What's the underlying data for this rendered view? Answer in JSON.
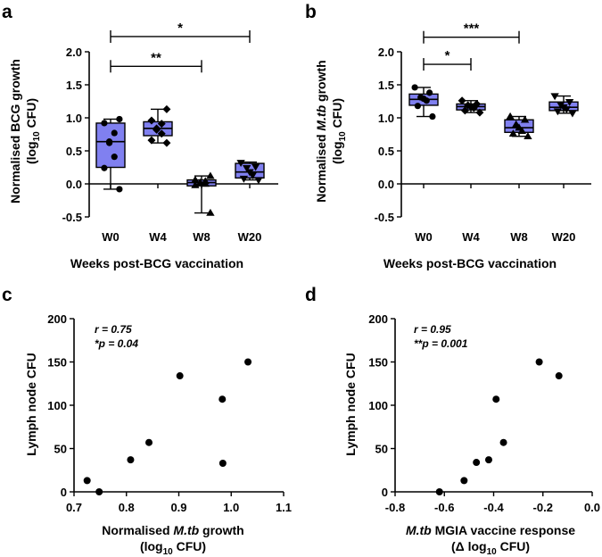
{
  "panels": [
    {
      "letter": "a",
      "ylabel_line1": "Normalised BCG growth",
      "ylabel_line2_pre": "(log",
      "ylabel_line2_sub": "10",
      "ylabel_line2_post": " CFU)",
      "xlabel": "Weeks post-BCG vaccination"
    },
    {
      "letter": "b",
      "ylabel_line1_pre": "Normalised ",
      "ylabel_line1_italic": "M.tb",
      "ylabel_line1_post": " growth",
      "ylabel_line2_pre": "(log",
      "ylabel_line2_sub": "10",
      "ylabel_line2_post": " CFU)",
      "xlabel": "Weeks post-BCG vaccination"
    },
    {
      "letter": "c",
      "ylabel": "Lymph node CFU",
      "xlabel_line1_pre": "Normalised ",
      "xlabel_line1_italic": "M.tb",
      "xlabel_line1_post": " growth",
      "xlabel_line2_pre": "(log",
      "xlabel_line2_sub": "10",
      "xlabel_line2_post": " CFU)",
      "r_text": "r = 0.75",
      "p_text": "*p = 0.04"
    },
    {
      "letter": "d",
      "ylabel": "Lymph node CFU",
      "xlabel_line1_italic": "M.tb",
      "xlabel_line1_post": " MGIA vaccine response",
      "xlabel_line2_pre": "(Δ log",
      "xlabel_line2_sub": "10",
      "xlabel_line2_post": " CFU)",
      "r_text": "r = 0.95",
      "p_text": "**p = 0.001"
    }
  ],
  "colors": {
    "box_fill": "#8080f0",
    "axis": "#000000"
  },
  "chart_data": [
    {
      "type": "box",
      "id": "a",
      "categories": [
        "W0",
        "W4",
        "W8",
        "W20"
      ],
      "ylim": [
        -0.5,
        2.0
      ],
      "yticks": [
        "-0.5",
        "0.0",
        "0.5",
        "1.0",
        "1.5",
        "2.0"
      ],
      "boxes": [
        {
          "min": -0.08,
          "q1": 0.25,
          "median": 0.64,
          "q3": 0.92,
          "max": 0.98
        },
        {
          "min": 0.62,
          "q1": 0.73,
          "median": 0.84,
          "q3": 0.94,
          "max": 1.13
        },
        {
          "min": -0.44,
          "q1": -0.03,
          "median": 0.02,
          "q3": 0.06,
          "max": 0.12
        },
        {
          "min": 0.06,
          "q1": 0.09,
          "median": 0.18,
          "q3": 0.31,
          "max": 0.33
        }
      ],
      "points": [
        [
          -0.08,
          0.24,
          0.41,
          0.62,
          0.64,
          0.77,
          0.92,
          0.98
        ],
        [
          0.62,
          0.66,
          0.76,
          0.82,
          0.84,
          0.91,
          0.96,
          1.13
        ],
        [
          -0.44,
          -0.02,
          0.0,
          0.01,
          0.02,
          0.04,
          0.06,
          0.12
        ],
        [
          0.06,
          0.08,
          0.13,
          0.18,
          0.24,
          0.26,
          0.32
        ]
      ],
      "point_markers": [
        "circle",
        "diamond",
        "triangle-up",
        "triangle-down"
      ],
      "significance": [
        {
          "from": 0,
          "to": 2,
          "y": 1.78,
          "label": "**"
        },
        {
          "from": 0,
          "to": 3,
          "y": 2.23,
          "label": "*"
        }
      ]
    },
    {
      "type": "box",
      "id": "b",
      "categories": [
        "W0",
        "W4",
        "W8",
        "W20"
      ],
      "ylim": [
        -0.5,
        2.0
      ],
      "yticks": [
        "-0.5",
        "0.0",
        "0.5",
        "1.0",
        "1.5",
        "2.0"
      ],
      "boxes": [
        {
          "min": 1.02,
          "q1": 1.19,
          "median": 1.28,
          "q3": 1.36,
          "max": 1.46
        },
        {
          "min": 1.08,
          "q1": 1.12,
          "median": 1.17,
          "q3": 1.21,
          "max": 1.26
        },
        {
          "min": 0.72,
          "q1": 0.78,
          "median": 0.85,
          "q3": 0.97,
          "max": 1.02
        },
        {
          "min": 1.07,
          "q1": 1.11,
          "median": 1.16,
          "q3": 1.24,
          "max": 1.33
        }
      ],
      "points": [
        [
          1.02,
          1.18,
          1.26,
          1.29,
          1.31,
          1.38,
          1.46
        ],
        [
          1.08,
          1.11,
          1.15,
          1.17,
          1.19,
          1.21,
          1.26
        ],
        [
          0.72,
          0.76,
          0.8,
          0.85,
          0.9,
          0.97,
          1.02
        ],
        [
          1.07,
          1.1,
          1.13,
          1.16,
          1.2,
          1.24,
          1.33
        ]
      ],
      "point_markers": [
        "circle",
        "diamond",
        "triangle-up",
        "triangle-down"
      ],
      "significance": [
        {
          "from": 0,
          "to": 1,
          "y": 1.81,
          "label": "*"
        },
        {
          "from": 0,
          "to": 2,
          "y": 2.22,
          "label": "***"
        }
      ]
    },
    {
      "type": "scatter",
      "id": "c",
      "xlim": [
        0.7,
        1.1
      ],
      "ylim": [
        0,
        200
      ],
      "xticks": [
        "0.7",
        "0.8",
        "0.9",
        "1.0",
        "1.1"
      ],
      "yticks": [
        "0",
        "50",
        "100",
        "150",
        "200"
      ],
      "x": [
        0.725,
        0.748,
        0.808,
        0.843,
        0.902,
        0.983,
        0.984,
        1.032
      ],
      "y": [
        13,
        0,
        37,
        57,
        134,
        107,
        33,
        150
      ]
    },
    {
      "type": "scatter",
      "id": "d",
      "xlim": [
        -0.8,
        0.0
      ],
      "ylim": [
        0,
        200
      ],
      "xticks": [
        "-0.8",
        "-0.6",
        "-0.4",
        "-0.2",
        "0.0"
      ],
      "yticks": [
        "0",
        "50",
        "100",
        "150",
        "200"
      ],
      "x": [
        -0.62,
        -0.52,
        -0.47,
        -0.42,
        -0.39,
        -0.36,
        -0.215,
        -0.135
      ],
      "y": [
        0,
        13,
        34,
        37,
        107,
        57,
        150,
        134
      ]
    }
  ]
}
